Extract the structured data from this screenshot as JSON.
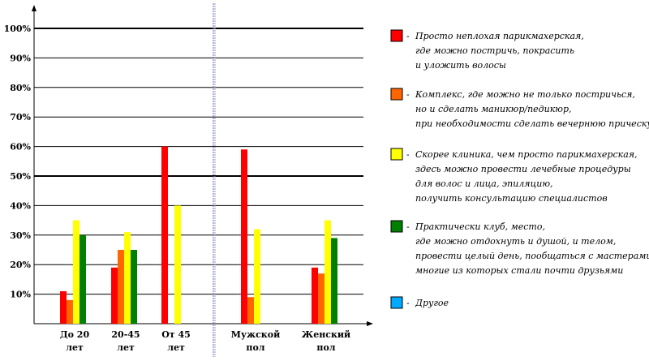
{
  "chart_data": {
    "type": "bar",
    "categories": [
      {
        "lines": [
          "До 20",
          "лет"
        ]
      },
      {
        "lines": [
          "20-45",
          "лет"
        ]
      },
      {
        "lines": [
          "От 45",
          "лет"
        ]
      },
      {
        "lines": [
          "Мужской",
          "пол"
        ]
      },
      {
        "lines": [
          "Женский",
          "пол"
        ]
      }
    ],
    "y_ticks": [
      "10%",
      "20%",
      "30%",
      "40%",
      "50%",
      "60%",
      "70%",
      "80%",
      "90%",
      "100%"
    ],
    "ylim": [
      0,
      100
    ],
    "grid": true,
    "legend_position": "right",
    "series": [
      {
        "name": [
          "Просто неплохая парикмахерская,",
          "где можно постричь, покрасить",
          "и уложить волосы"
        ],
        "color": "#ff0000",
        "values": [
          11,
          19,
          60,
          59,
          19
        ]
      },
      {
        "name": [
          "Комплекс, где можно не только постричься,",
          "но и сделать маникюр/педикюр,",
          "при необходимости сделать вечернюю прическу"
        ],
        "color": "#ff6600",
        "values": [
          8,
          25,
          0,
          9,
          17
        ]
      },
      {
        "name": [
          "Скорее клиника, чем просто парикмахерская,",
          "здесь можно провести лечебные процедуры",
          "для волос и лица, эпиляцию,",
          "получить консультацию специалистов"
        ],
        "color": "#ffff00",
        "values": [
          35,
          31,
          40,
          32,
          35
        ]
      },
      {
        "name": [
          "Практически клуб, место,",
          "где можно отдохнуть и душой, и телом,",
          "провести целый день, пообщаться с мастерами,",
          "многие из которых стали почти друзьями"
        ],
        "color": "#008000",
        "values": [
          30,
          25,
          0,
          0,
          29
        ]
      },
      {
        "name": [
          "Другое"
        ],
        "color": "#00aaff",
        "values": [
          0,
          0,
          0,
          0,
          0
        ]
      }
    ]
  }
}
